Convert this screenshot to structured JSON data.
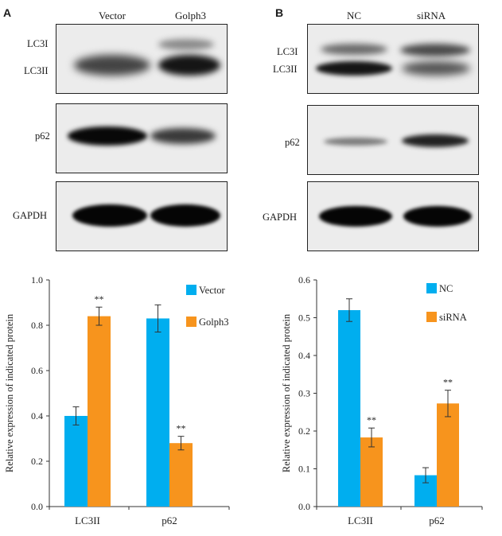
{
  "panels": [
    {
      "letter": "A",
      "lanes": [
        "Vector",
        "Golph3"
      ],
      "blot_labels": {
        "lc3i": "LC3I",
        "lc3ii": "LC3II",
        "p62": "p62",
        "gapdh": "GAPDH"
      }
    },
    {
      "letter": "B",
      "lanes": [
        "NC",
        "siRNA"
      ],
      "blot_labels": {
        "lc3i": "LC3I",
        "lc3ii": "LC3II",
        "p62": "p62",
        "gapdh": "GAPDH"
      }
    }
  ],
  "colors": {
    "series1": "#00AEEF",
    "series2": "#F7941D"
  },
  "chart_data": [
    {
      "type": "bar",
      "categories": [
        "LC3II",
        "p62"
      ],
      "series": [
        {
          "name": "Vector",
          "values": [
            0.4,
            0.83
          ],
          "errors": [
            0.04,
            0.06
          ]
        },
        {
          "name": "Golph3",
          "values": [
            0.84,
            0.28
          ],
          "errors": [
            0.04,
            0.03
          ]
        }
      ],
      "annotations": [
        {
          "category": "LC3II",
          "series": "Golph3",
          "text": "**"
        },
        {
          "category": "p62",
          "series": "Golph3",
          "text": "**"
        }
      ],
      "ylabel": "Relative expression of indicated protein",
      "ylim": [
        0,
        1.0
      ],
      "yticks": [
        "0.0",
        "0.2",
        "0.4",
        "0.6",
        "0.8",
        "1.0"
      ],
      "legend": "top-right"
    },
    {
      "type": "bar",
      "categories": [
        "LC3II",
        "p62"
      ],
      "series": [
        {
          "name": "NC",
          "values": [
            0.52,
            0.083
          ],
          "errors": [
            0.03,
            0.02
          ]
        },
        {
          "name": "siRNA",
          "values": [
            0.183,
            0.273
          ],
          "errors": [
            0.025,
            0.035
          ]
        }
      ],
      "annotations": [
        {
          "category": "LC3II",
          "series": "siRNA",
          "text": "**"
        },
        {
          "category": "p62",
          "series": "siRNA",
          "text": "**"
        }
      ],
      "ylabel": "Relative expression of indicated protein",
      "ylim": [
        0,
        0.6
      ],
      "yticks": [
        "0.0",
        "0.1",
        "0.2",
        "0.3",
        "0.4",
        "0.5",
        "0.6"
      ],
      "legend": "top-right"
    }
  ]
}
